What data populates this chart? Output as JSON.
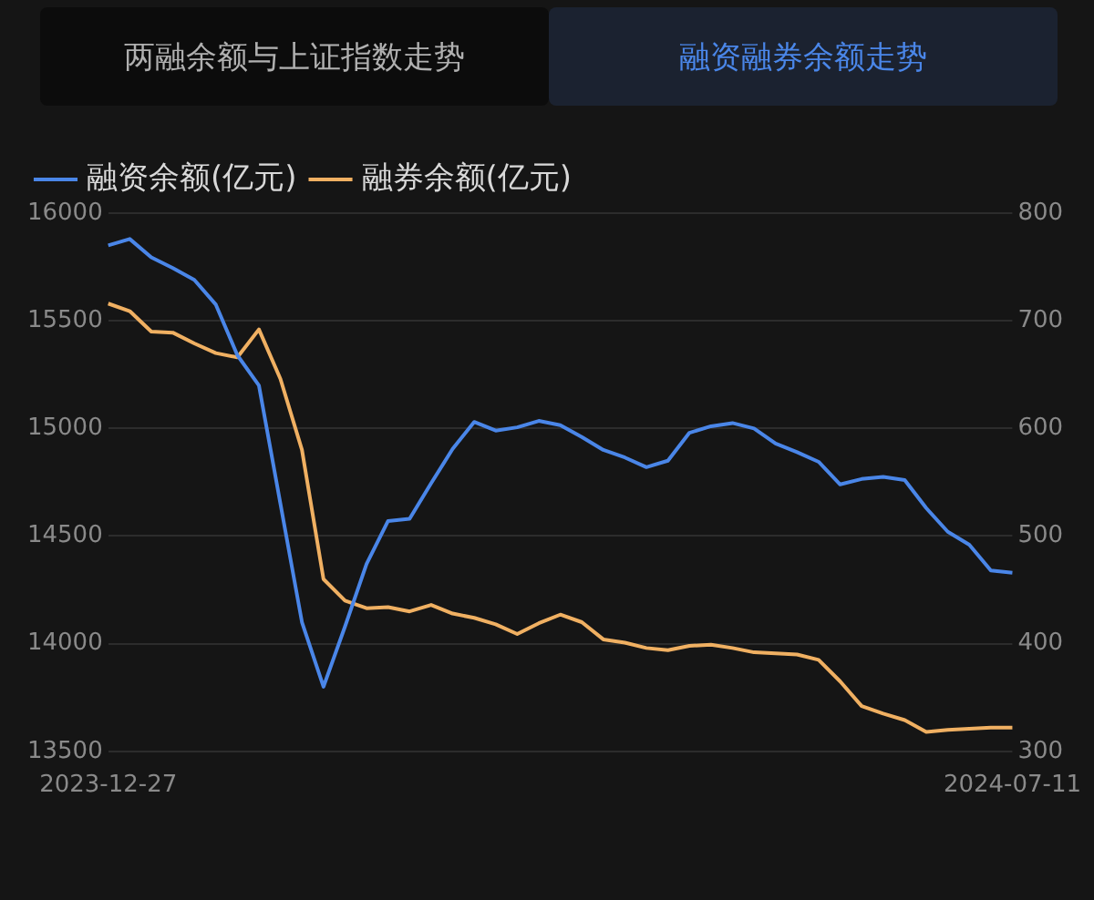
{
  "chart_data": {
    "type": "line",
    "title": "融资融券余额走势",
    "subtitle": "两融余额与上证指数走势",
    "categories": [
      "2023-12-27",
      null,
      null,
      null,
      null,
      null,
      null,
      null,
      null,
      null,
      null,
      null,
      null,
      null,
      null,
      null,
      null,
      null,
      null,
      null,
      null,
      null,
      null,
      null,
      null,
      null,
      null,
      null,
      null,
      null,
      null,
      null,
      null,
      null,
      null,
      null,
      null,
      null,
      null,
      null,
      null,
      null,
      "2024-07-11"
    ],
    "series": [
      {
        "name": "融资余额(亿元)",
        "color": "#4a86e8",
        "values": [
          15850,
          15880,
          15795,
          15745,
          15690,
          15575,
          15340,
          15200,
          14650,
          14100,
          13800,
          14080,
          14370,
          14570,
          14580,
          14745,
          14905,
          15030,
          14990,
          15005,
          15035,
          15015,
          14960,
          14900,
          14865,
          14820,
          14850,
          14980,
          15010,
          15025,
          15000,
          14930,
          14890,
          14845,
          14740,
          14765,
          14775,
          14760,
          14630,
          14520,
          14460,
          14340,
          14330
        ]
      },
      {
        "name": "融券余额(亿元)",
        "color": "#f0b062",
        "axis": "y2",
        "values": [
          716,
          709,
          690,
          689,
          679,
          670,
          666,
          692,
          646,
          580,
          460,
          440,
          433,
          434,
          430,
          436,
          428,
          424,
          418,
          409,
          419,
          427,
          420,
          404,
          401,
          396,
          394,
          398,
          399,
          396,
          392,
          391,
          390,
          385,
          365,
          342,
          335,
          329,
          318,
          320,
          321,
          322,
          322
        ]
      }
    ],
    "ylim": [
      13500,
      16000
    ],
    "yticks": [
      13500,
      14000,
      14500,
      15000,
      15500,
      16000
    ],
    "y2lim": [
      300,
      800
    ],
    "y2ticks": [
      300,
      400,
      500,
      600,
      700,
      800
    ],
    "grid": "y",
    "legend": "top left",
    "marker": "none",
    "line_style": "solid"
  }
}
